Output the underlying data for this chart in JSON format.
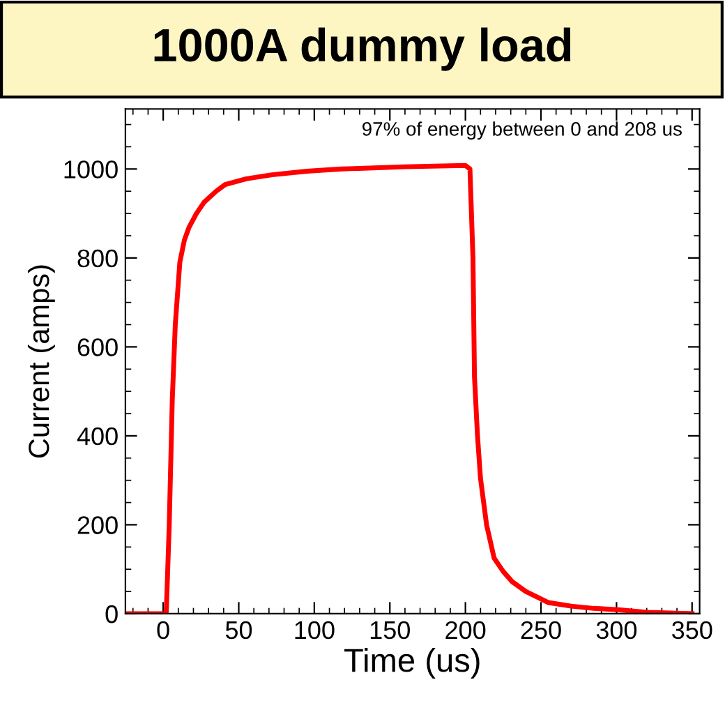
{
  "chart_data": {
    "type": "line",
    "title": "1000A dummy load",
    "xlabel": "Time (us)",
    "ylabel": "Current (amps)",
    "annotations": [
      "97% of energy between 0 and 208 us"
    ],
    "x": [
      -25,
      -10,
      2,
      4,
      6,
      8,
      11,
      14,
      17,
      22,
      27,
      35,
      41,
      55,
      72,
      95,
      118,
      160,
      200,
      203,
      205,
      206,
      208,
      210,
      214,
      219,
      225,
      231,
      240,
      255,
      270,
      285,
      301,
      320,
      350
    ],
    "series": [
      {
        "color": "#ff0000",
        "values": [
          0,
          0,
          0,
          200,
          480,
          650,
          790,
          840,
          868,
          900,
          925,
          950,
          965,
          978,
          987,
          995,
          1000,
          1005,
          1008,
          1000,
          800,
          533,
          400,
          304,
          200,
          125,
          95,
          72,
          50,
          25,
          17,
          12,
          9,
          3,
          0
        ]
      }
    ],
    "xlim": [
      -25,
      355
    ],
    "ylim": [
      0,
      1135
    ],
    "xticks": [
      0,
      50,
      100,
      150,
      200,
      250,
      300,
      350
    ],
    "yticks": [
      0,
      200,
      400,
      600,
      800,
      1000
    ],
    "marker": "none",
    "line_style": "solid"
  }
}
